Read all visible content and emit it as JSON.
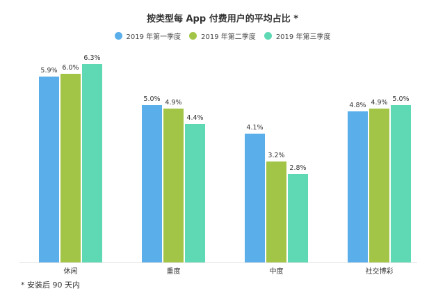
{
  "chart_data": {
    "type": "bar",
    "title": "按类型每 App 付费用户的平均占比 *",
    "categories": [
      "休闲",
      "重度",
      "中度",
      "社交博彩"
    ],
    "series": [
      {
        "name": "2019 年第一季度",
        "color": "#5aaeea",
        "values": [
          5.9,
          5.0,
          4.1,
          4.8
        ],
        "labels": [
          "5.9%",
          "5.0%",
          "4.1%",
          "4.8%"
        ]
      },
      {
        "name": "2019 年第二季度",
        "color": "#a3c547",
        "values": [
          6.0,
          4.9,
          3.2,
          4.9
        ],
        "labels": [
          "6.0%",
          "4.9%",
          "3.2%",
          "4.9%"
        ]
      },
      {
        "name": "2019 年第三季度",
        "color": "#5ed9b4",
        "values": [
          6.3,
          4.4,
          2.8,
          5.0
        ],
        "labels": [
          "6.3%",
          "4.4%",
          "2.8%",
          "5.0%"
        ]
      }
    ],
    "xlabel": "",
    "ylabel": "",
    "ylim": [
      0,
      6.3
    ],
    "grid": false,
    "legend_position": "top",
    "footnote": "* 安装后 90 天内"
  }
}
